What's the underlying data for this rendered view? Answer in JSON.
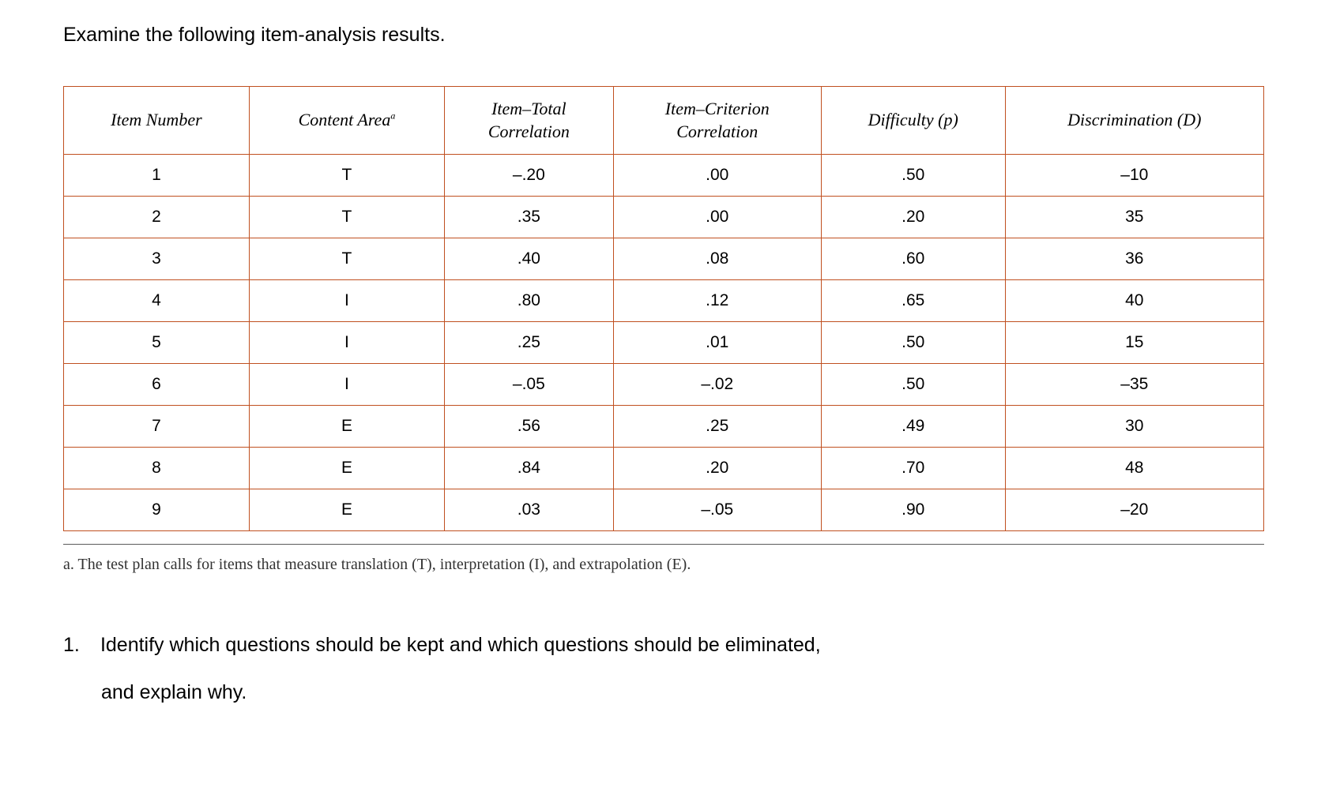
{
  "intro": "Examine the following item-analysis results.",
  "table": {
    "border_color": "#c05020",
    "header_font": "italic serif",
    "columns": [
      {
        "label": "Item Number"
      },
      {
        "label_html": "Content Area",
        "sup": "a"
      },
      {
        "label_lines": [
          "Item–Total",
          "Correlation"
        ]
      },
      {
        "label_lines": [
          "Item–Criterion",
          "Correlation"
        ]
      },
      {
        "label": "Difficulty (p)"
      },
      {
        "label": "Discrimination (D)"
      }
    ],
    "rows": [
      [
        "1",
        "T",
        "–.20",
        ".00",
        ".50",
        "–10"
      ],
      [
        "2",
        "T",
        ".35",
        ".00",
        ".20",
        "35"
      ],
      [
        "3",
        "T",
        ".40",
        ".08",
        ".60",
        "36"
      ],
      [
        "4",
        "I",
        ".80",
        ".12",
        ".65",
        "40"
      ],
      [
        "5",
        "I",
        ".25",
        ".01",
        ".50",
        "15"
      ],
      [
        "6",
        "I",
        "–.05",
        "–.02",
        ".50",
        "–35"
      ],
      [
        "7",
        "E",
        ".56",
        ".25",
        ".49",
        "30"
      ],
      [
        "8",
        "E",
        ".84",
        ".20",
        ".70",
        "48"
      ],
      [
        "9",
        "E",
        ".03",
        "–.05",
        ".90",
        "–20"
      ]
    ]
  },
  "footnote": "a. The test plan calls for items that measure translation (T), interpretation (I), and extrapolation (E).",
  "question": {
    "number": "1.",
    "line1": "Identify which questions should be kept and which questions should be eliminated,",
    "line2": "and explain why."
  }
}
